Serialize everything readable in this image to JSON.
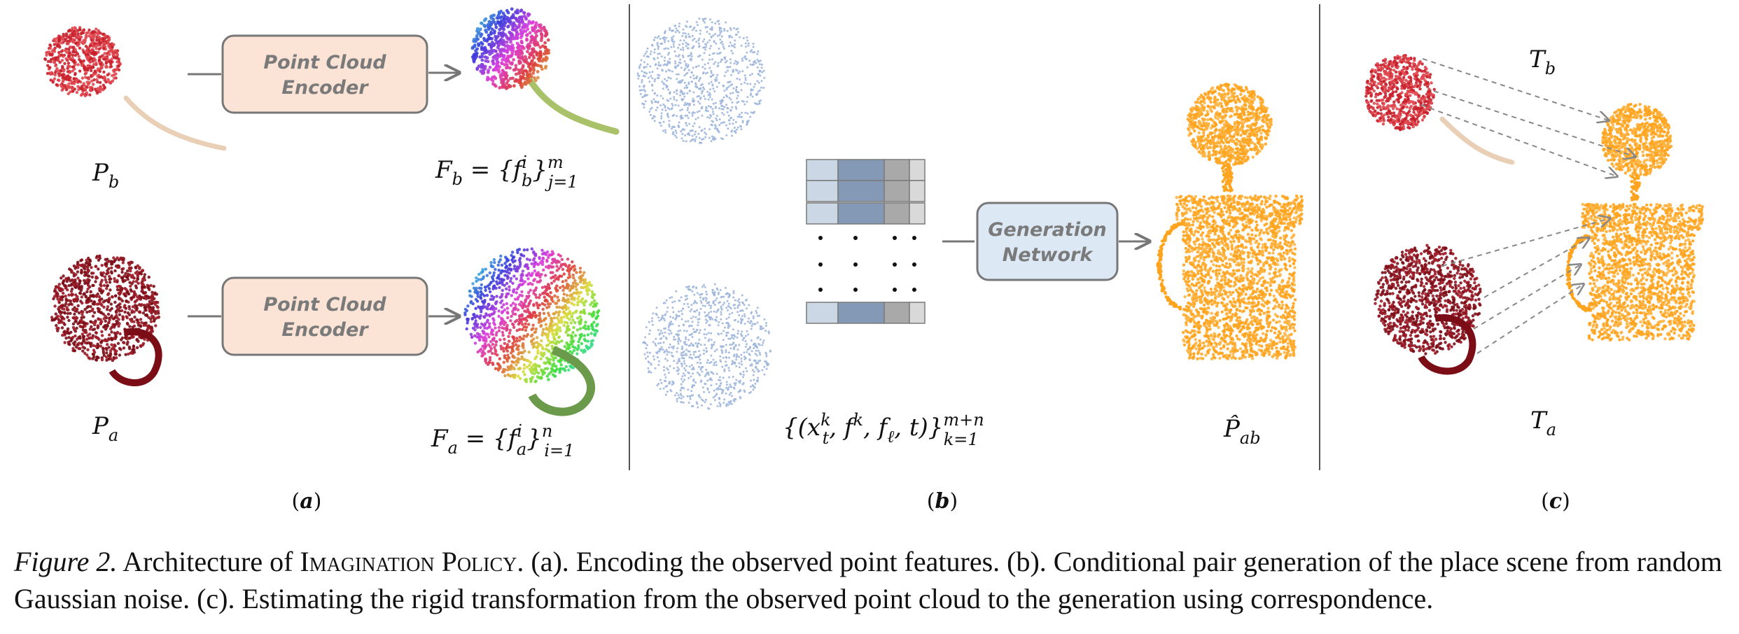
{
  "panels": {
    "a": {
      "label": "a",
      "encoder_label_line1": "Point Cloud",
      "encoder_label_line2": "Encoder",
      "pb": {
        "base": "P",
        "sub": "b"
      },
      "pa": {
        "base": "P",
        "sub": "a"
      },
      "fb": {
        "base": "F",
        "sub": "b",
        "eq": " = {f",
        "isub": "b",
        "isup": "i",
        "close": "}",
        "lim_sub": "j=1",
        "lim_sup": "m"
      },
      "fa": {
        "base": "F",
        "sub": "a",
        "eq": " = {f",
        "isub": "a",
        "isup": "i",
        "close": "}",
        "lim_sub": "i=1",
        "lim_sup": "n"
      }
    },
    "b": {
      "label": "b",
      "network_label_line1": "Generation",
      "network_label_line2": "Network",
      "tuple": {
        "open": "{(x",
        "xsub": "t",
        "xsup": "k",
        "mid1": ", f",
        "fsup": "k",
        "mid2": ", f",
        "flsub": "ℓ",
        "end": ", t)}",
        "lim_sub": "k=1",
        "lim_sup": "m+n"
      },
      "phat": {
        "base": "P̂",
        "sub": "ab"
      }
    },
    "c": {
      "label": "c",
      "tb": {
        "base": "T",
        "sub": "b"
      },
      "ta": {
        "base": "T",
        "sub": "a"
      }
    }
  },
  "colors": {
    "encoder_fill": "#fbe4d6",
    "network_fill": "#dce9f5",
    "plant_red": "#c8202b",
    "mug_red": "#7b0d17",
    "generated_orange": "#ffa41f",
    "noise_blue": "#9fb6dc"
  },
  "caption": {
    "fig_label": "Figure 2.",
    "text_before": " Architecture of ",
    "policy_name": "Imagination Policy",
    "text_after": ". (a). Encoding the observed point features. (b). Conditional pair generation of the place scene from random Gaussian noise. (c). Estimating the rigid transformation from the observed point cloud to the generation using correspondence."
  }
}
